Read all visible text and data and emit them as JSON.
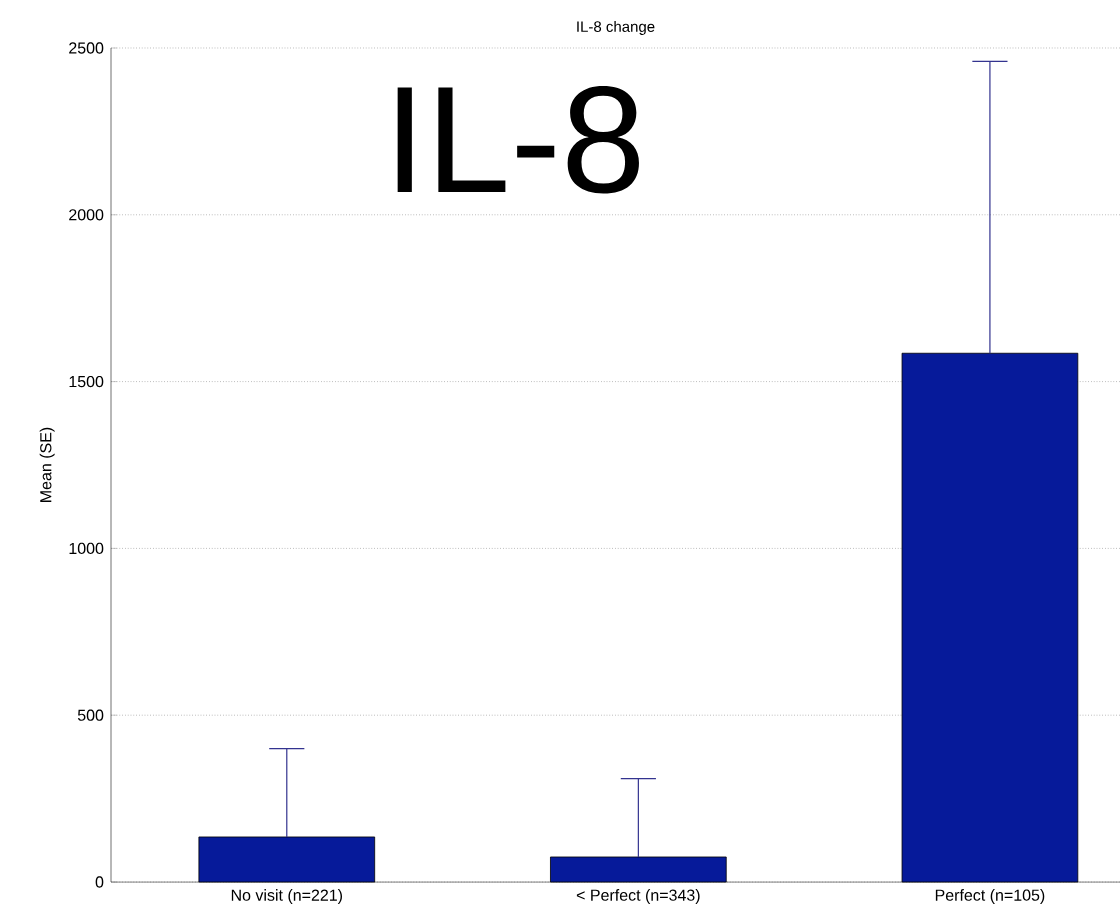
{
  "chart_data": {
    "type": "bar",
    "title": "IL-8 change",
    "ylabel": "Mean (SE)",
    "annotations": [
      "IL-8"
    ],
    "categories": [
      "No visit (n=221)",
      "< Perfect (n=343)",
      "Perfect (n=105)"
    ],
    "values": [
      135,
      75,
      1585
    ],
    "errors": [
      [
        135,
        400
      ],
      [
        75,
        310
      ],
      [
        1585,
        2460
      ]
    ],
    "color": "#061a9a",
    "ylim": [
      0,
      2500
    ],
    "yticks": [
      0,
      500,
      1000,
      1500,
      2000,
      2500
    ],
    "grid": "y"
  }
}
